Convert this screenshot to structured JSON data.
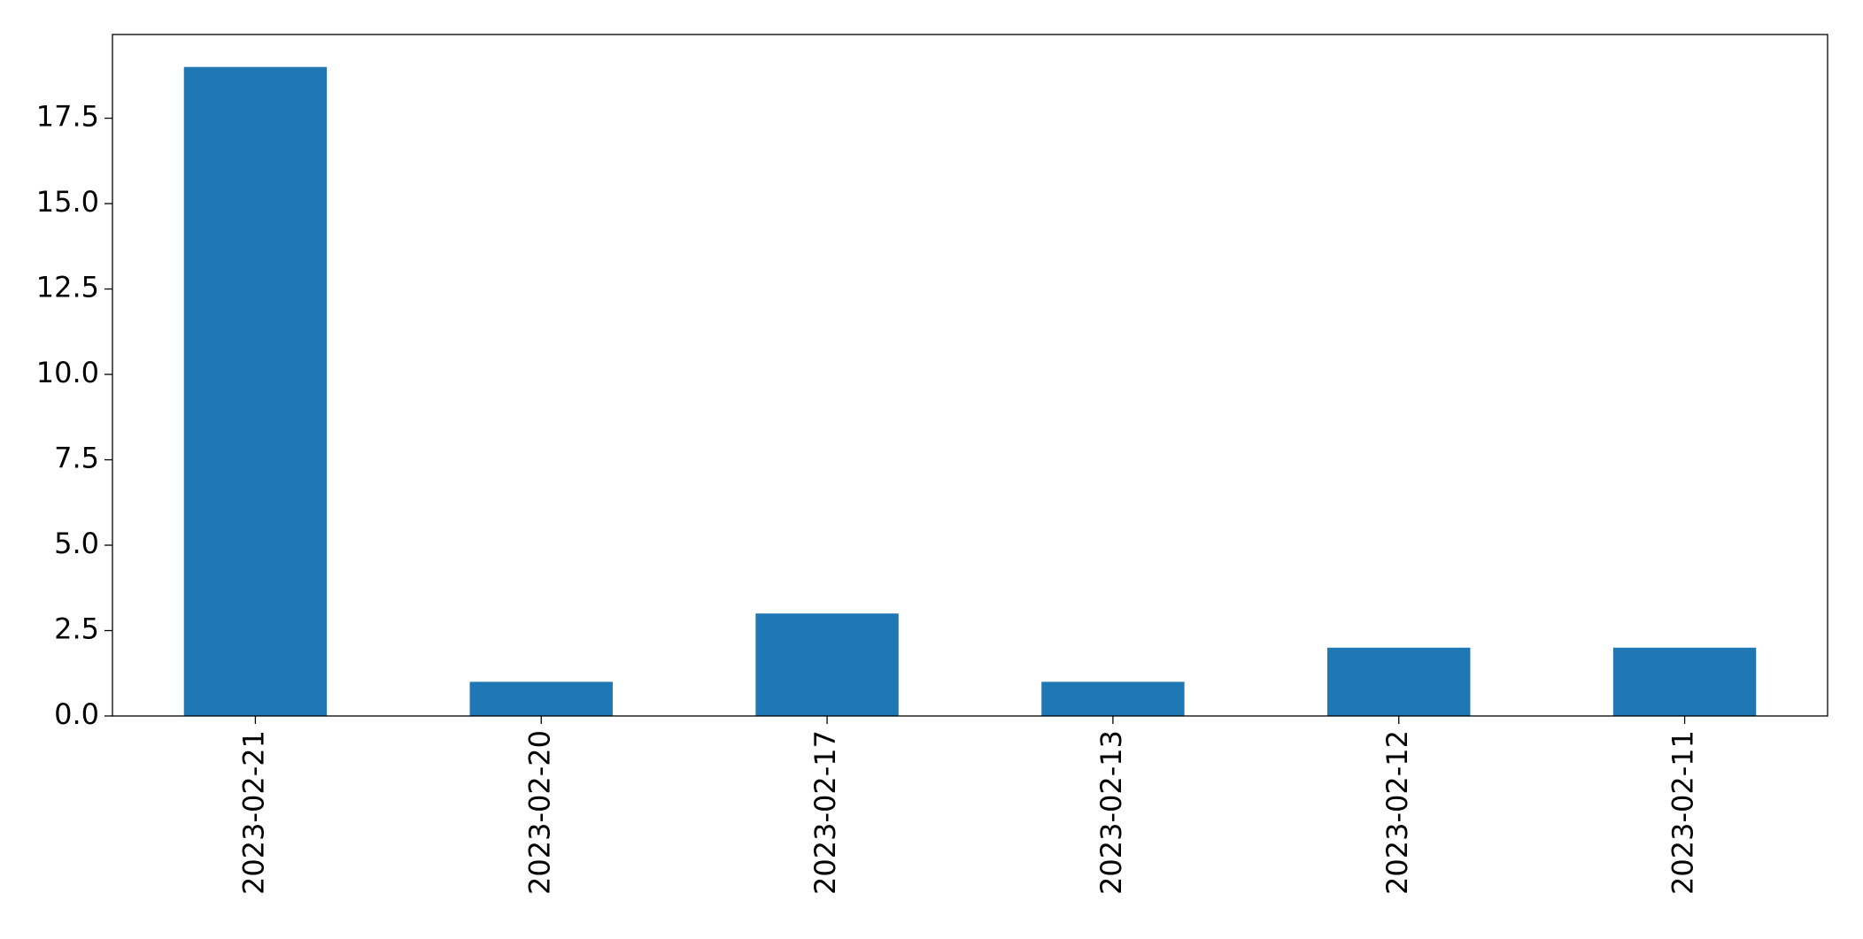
{
  "chart_data": {
    "type": "bar",
    "categories": [
      "2023-02-21",
      "2023-02-20",
      "2023-02-17",
      "2023-02-13",
      "2023-02-12",
      "2023-02-11"
    ],
    "values": [
      19,
      1,
      3,
      1,
      2,
      2
    ],
    "color": "#1f77b4",
    "ylim": [
      0,
      19.95
    ],
    "yticks": [
      {
        "value": 0,
        "label": "0.0"
      },
      2.5,
      {
        "value": 5,
        "label": "5.0"
      },
      7.5,
      {
        "value": 10,
        "label": "10.0"
      },
      12.5,
      {
        "value": 15,
        "label": "15.0"
      },
      17.5
    ],
    "grid": false
  }
}
